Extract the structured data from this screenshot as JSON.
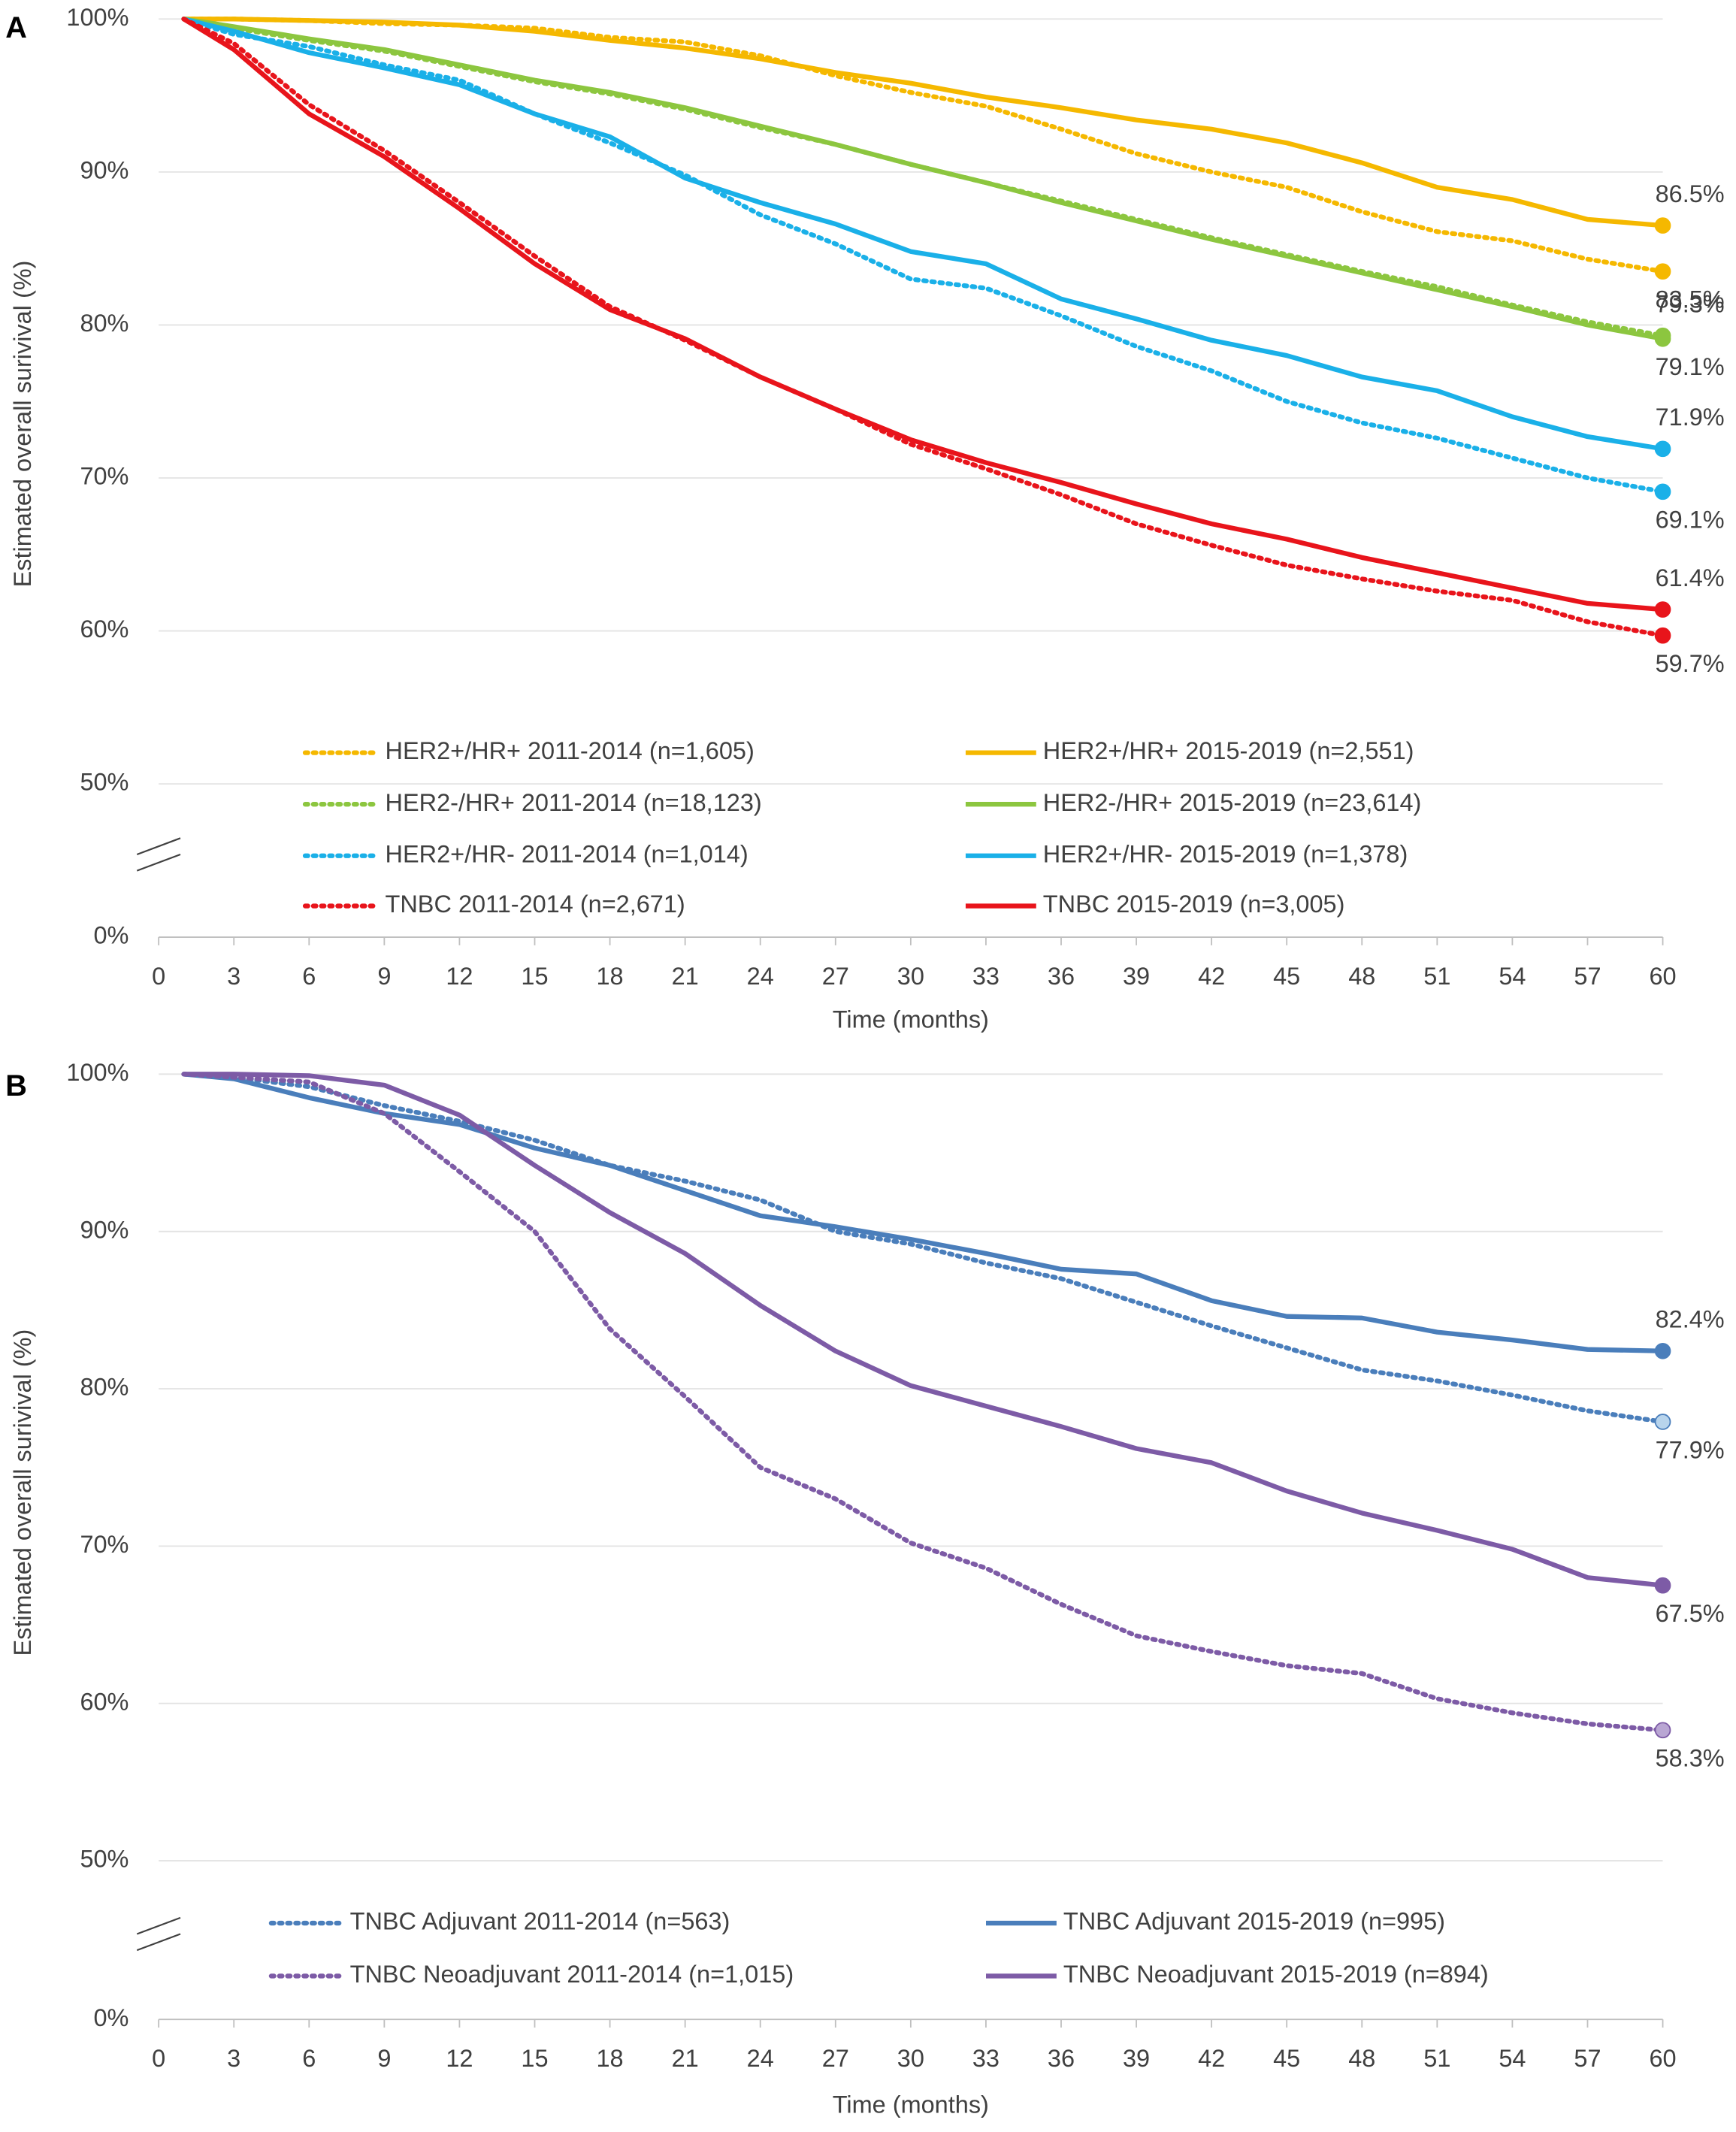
{
  "chart_data": [
    {
      "type": "line",
      "panel": "A",
      "y_label": "Estimated overall surivival (%)",
      "x_label": "Time (months)",
      "x": [
        1,
        3,
        6,
        9,
        12,
        15,
        18,
        21,
        24,
        27,
        30,
        33,
        36,
        39,
        42,
        45,
        48,
        51,
        54,
        57,
        60
      ],
      "xlim": [
        0,
        60
      ],
      "xticks": [
        0,
        3,
        6,
        9,
        12,
        15,
        18,
        21,
        24,
        27,
        30,
        33,
        36,
        39,
        42,
        45,
        48,
        51,
        54,
        57,
        60
      ],
      "ylim": [
        0,
        100
      ],
      "y_break": [
        0,
        50
      ],
      "yticks": [
        {
          "value": 0,
          "label": "0%"
        },
        {
          "value": 50,
          "label": "50%"
        },
        {
          "value": 60,
          "label": "60%"
        },
        {
          "value": 70,
          "label": "70%"
        },
        {
          "value": 80,
          "label": "80%"
        },
        {
          "value": 90,
          "label": "90%"
        },
        {
          "value": 100,
          "label": "100%"
        }
      ],
      "grid": true,
      "series": [
        {
          "name": "HER2+/HR+ 2011-2014 (n=1,605)",
          "color": "#f5b800",
          "marker_color": "#f5b800",
          "style": "dotted",
          "label_pos": "below",
          "values": [
            100,
            100,
            99.9,
            99.7,
            99.6,
            99.4,
            98.8,
            98.5,
            97.6,
            96.3,
            95.2,
            94.3,
            92.8,
            91.2,
            90.0,
            89.0,
            87.4,
            86.1,
            85.5,
            84.3,
            83.5
          ],
          "value_labels": [
            null,
            null,
            null,
            null,
            null,
            null,
            null,
            null,
            null,
            null,
            null,
            null,
            null,
            null,
            null,
            null,
            null,
            null,
            null,
            null,
            "83.5%"
          ]
        },
        {
          "name": "HER2+/HR+ 2015-2019 (n=2,551)",
          "color": "#f5b800",
          "marker_color": "#f5b800",
          "style": "solid",
          "label_pos": "above",
          "values": [
            100,
            100,
            99.9,
            99.8,
            99.6,
            99.2,
            98.6,
            98.1,
            97.4,
            96.5,
            95.8,
            94.9,
            94.2,
            93.4,
            92.8,
            91.9,
            90.6,
            89.0,
            88.2,
            86.9,
            86.5
          ],
          "value_labels": [
            null,
            null,
            null,
            null,
            null,
            null,
            null,
            null,
            null,
            null,
            null,
            null,
            null,
            null,
            null,
            null,
            null,
            null,
            null,
            null,
            "86.5%"
          ]
        },
        {
          "name": "HER2-/HR+ 2011-2014 (n=18,123)",
          "color": "#8cc63f",
          "marker_color": "#8cc63f",
          "style": "dotted",
          "label_pos": "above",
          "values": [
            100,
            99.4,
            98.6,
            97.9,
            96.9,
            95.9,
            95.1,
            94.1,
            92.9,
            91.8,
            90.5,
            89.3,
            88.1,
            86.9,
            85.7,
            84.6,
            83.5,
            82.5,
            81.3,
            80.2,
            79.3
          ],
          "value_labels": [
            null,
            null,
            null,
            null,
            null,
            null,
            null,
            null,
            null,
            null,
            null,
            null,
            null,
            null,
            null,
            null,
            null,
            null,
            null,
            null,
            "79.3%"
          ]
        },
        {
          "name": "HER2-/HR+ 2015-2019 (n=23,614)",
          "color": "#8cc63f",
          "marker_color": "#8cc63f",
          "style": "solid",
          "label_pos": "below",
          "values": [
            100,
            99.5,
            98.7,
            98.0,
            97.0,
            96.0,
            95.2,
            94.2,
            93.0,
            91.8,
            90.5,
            89.3,
            88.0,
            86.8,
            85.6,
            84.5,
            83.4,
            82.3,
            81.2,
            80.0,
            79.1
          ],
          "value_labels": [
            null,
            null,
            null,
            null,
            null,
            null,
            null,
            null,
            null,
            null,
            null,
            null,
            null,
            null,
            null,
            null,
            null,
            null,
            null,
            null,
            "79.1%"
          ]
        },
        {
          "name": "HER2+/HR- 2011-2014 (n=1,014)",
          "color": "#1ab0e8",
          "marker_color": "#1ab0e8",
          "style": "dotted",
          "label_pos": "below",
          "values": [
            100,
            99.0,
            98.2,
            97.0,
            96.0,
            93.8,
            91.9,
            89.8,
            87.2,
            85.3,
            83.0,
            82.4,
            80.6,
            78.6,
            77.0,
            75.0,
            73.6,
            72.6,
            71.3,
            70.0,
            69.1
          ],
          "value_labels": [
            null,
            null,
            null,
            null,
            null,
            null,
            null,
            null,
            null,
            null,
            null,
            null,
            null,
            null,
            null,
            null,
            null,
            null,
            null,
            null,
            "69.1%"
          ]
        },
        {
          "name": "HER2+/HR- 2015-2019 (n=1,378)",
          "color": "#1ab0e8",
          "marker_color": "#1ab0e8",
          "style": "solid",
          "label_pos": "above",
          "values": [
            100,
            99.2,
            97.8,
            96.8,
            95.7,
            93.8,
            92.3,
            89.6,
            88.0,
            86.6,
            84.8,
            84.0,
            81.7,
            80.4,
            79.0,
            78.0,
            76.6,
            75.7,
            74.0,
            72.7,
            71.9
          ],
          "value_labels": [
            null,
            null,
            null,
            null,
            null,
            null,
            null,
            null,
            null,
            null,
            null,
            null,
            null,
            null,
            null,
            null,
            null,
            null,
            null,
            null,
            "71.9%"
          ]
        },
        {
          "name": "TNBC 2011-2014 (n=2,671)",
          "color": "#e8141b",
          "marker_color": "#e8141b",
          "style": "dotted",
          "label_pos": "below",
          "values": [
            100,
            98.4,
            94.4,
            91.4,
            88.0,
            84.5,
            81.2,
            79.0,
            76.6,
            74.5,
            72.2,
            70.6,
            68.9,
            67.0,
            65.6,
            64.3,
            63.4,
            62.6,
            62.0,
            60.6,
            59.7
          ],
          "value_labels": [
            null,
            null,
            null,
            null,
            null,
            null,
            null,
            null,
            null,
            null,
            null,
            null,
            null,
            null,
            null,
            null,
            null,
            null,
            null,
            null,
            "59.7%"
          ]
        },
        {
          "name": "TNBC 2015-2019 (n=3,005)",
          "color": "#e8141b",
          "marker_color": "#e8141b",
          "style": "solid",
          "label_pos": "above",
          "values": [
            100,
            98.0,
            93.8,
            91.0,
            87.6,
            84.0,
            81.0,
            79.1,
            76.6,
            74.5,
            72.5,
            71.0,
            69.7,
            68.3,
            67.0,
            66.0,
            64.8,
            63.8,
            62.8,
            61.8,
            61.4
          ],
          "value_labels": [
            null,
            null,
            null,
            null,
            null,
            null,
            null,
            null,
            null,
            null,
            null,
            null,
            null,
            null,
            null,
            null,
            null,
            null,
            null,
            null,
            "61.4%"
          ]
        }
      ]
    },
    {
      "type": "line",
      "panel": "B",
      "y_label": "Estimated overall surivival (%)",
      "x_label": "Time (months)",
      "x": [
        1,
        3,
        6,
        9,
        12,
        15,
        18,
        21,
        24,
        27,
        30,
        33,
        36,
        39,
        42,
        45,
        48,
        51,
        54,
        57,
        60
      ],
      "xlim": [
        0,
        60
      ],
      "xticks": [
        0,
        3,
        6,
        9,
        12,
        15,
        18,
        21,
        24,
        27,
        30,
        33,
        36,
        39,
        42,
        45,
        48,
        51,
        54,
        57,
        60
      ],
      "ylim": [
        0,
        100
      ],
      "y_break": [
        0,
        50
      ],
      "yticks": [
        {
          "value": 0,
          "label": "0%"
        },
        {
          "value": 50,
          "label": "50%"
        },
        {
          "value": 60,
          "label": "60%"
        },
        {
          "value": 70,
          "label": "70%"
        },
        {
          "value": 80,
          "label": "80%"
        },
        {
          "value": 90,
          "label": "90%"
        },
        {
          "value": 100,
          "label": "100%"
        }
      ],
      "grid": true,
      "series": [
        {
          "name": "TNBC Adjuvant 2011-2014 (n=563)",
          "color": "#4a7ebb",
          "marker_color": "#b8d4ec",
          "style": "dotted",
          "label_pos": "below",
          "values": [
            100,
            99.8,
            99.2,
            98.0,
            97.0,
            95.8,
            94.2,
            93.2,
            92.0,
            90.0,
            89.2,
            88.0,
            87.0,
            85.5,
            84.0,
            82.6,
            81.2,
            80.5,
            79.6,
            78.6,
            77.9
          ],
          "value_labels": [
            null,
            null,
            null,
            null,
            null,
            null,
            null,
            null,
            null,
            null,
            null,
            null,
            null,
            null,
            null,
            null,
            null,
            null,
            null,
            null,
            "77.9%"
          ]
        },
        {
          "name": "TNBC Adjuvant 2015-2019 (n=995)",
          "color": "#4a7ebb",
          "marker_color": "#4a7ebb",
          "style": "solid",
          "label_pos": "above",
          "values": [
            100,
            99.7,
            98.5,
            97.5,
            96.8,
            95.3,
            94.2,
            92.6,
            91.0,
            90.3,
            89.5,
            88.6,
            87.6,
            87.3,
            85.6,
            84.6,
            84.5,
            83.6,
            83.1,
            82.5,
            82.4
          ],
          "value_labels": [
            null,
            null,
            null,
            null,
            null,
            null,
            null,
            null,
            null,
            null,
            null,
            null,
            null,
            null,
            null,
            null,
            null,
            null,
            null,
            null,
            "82.4%"
          ]
        },
        {
          "name": "TNBC Neoadjuvant 2011-2014 (n=1,015)",
          "color": "#7d5ba6",
          "marker_color": "#b9a6d3",
          "style": "dotted",
          "label_pos": "below",
          "values": [
            100,
            99.8,
            99.5,
            97.5,
            93.8,
            90.0,
            83.8,
            79.5,
            75.0,
            73.0,
            70.2,
            68.6,
            66.3,
            64.3,
            63.3,
            62.4,
            61.9,
            60.3,
            59.4,
            58.7,
            58.3
          ],
          "value_labels": [
            null,
            null,
            null,
            null,
            null,
            null,
            null,
            null,
            null,
            null,
            null,
            null,
            null,
            null,
            null,
            null,
            null,
            null,
            null,
            null,
            "58.3%"
          ]
        },
        {
          "name": "TNBC Neoadjuvant 2015-2019 (n=894)",
          "color": "#7d5ba6",
          "marker_color": "#7d5ba6",
          "style": "solid",
          "label_pos": "below",
          "values": [
            100,
            100,
            99.9,
            99.3,
            97.4,
            94.2,
            91.2,
            88.6,
            85.3,
            82.4,
            80.2,
            78.9,
            77.6,
            76.2,
            75.3,
            73.5,
            72.1,
            71.0,
            69.8,
            68.0,
            67.5
          ],
          "value_labels": [
            null,
            null,
            null,
            null,
            null,
            null,
            null,
            null,
            null,
            null,
            null,
            null,
            null,
            null,
            null,
            null,
            null,
            null,
            null,
            null,
            "67.5%"
          ]
        }
      ]
    }
  ]
}
